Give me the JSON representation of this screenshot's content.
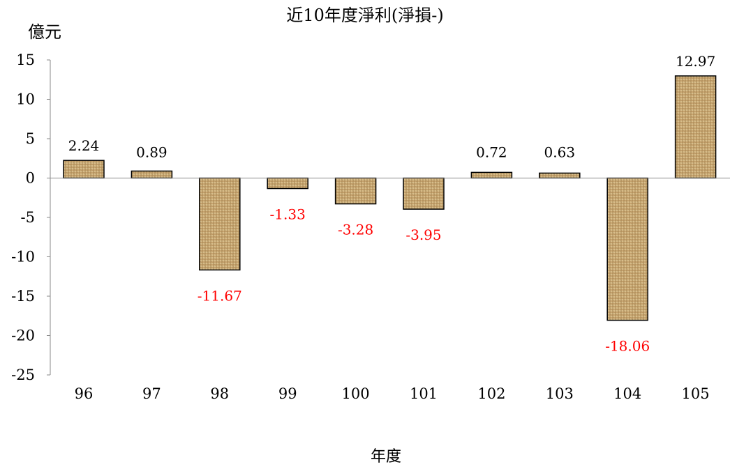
{
  "chart_data": {
    "type": "bar",
    "title": "近10年度淨利(淨損-)",
    "ylabel": "億元",
    "xlabel": "年度",
    "ylim": [
      -25,
      15
    ],
    "yticks": [
      15,
      10,
      5,
      0,
      -5,
      -10,
      -15,
      -20,
      -25
    ],
    "grid": false,
    "categories": [
      "96",
      "97",
      "98",
      "99",
      "100",
      "101",
      "102",
      "103",
      "104",
      "105"
    ],
    "values": [
      2.24,
      0.89,
      -11.67,
      -1.33,
      -3.28,
      -3.95,
      0.72,
      0.63,
      -18.06,
      12.97
    ],
    "data_labels": [
      "2.24",
      "0.89",
      "-11.67",
      "-1.33",
      "-3.28",
      "-3.95",
      "0.72",
      "0.63",
      "-18.06",
      "12.97"
    ],
    "colors": {
      "bar_fill": "#c7a46f",
      "bar_weave_light": "#e2cc9a",
      "bar_weave_dark": "#8a6a3a",
      "bar_stroke": "#000000",
      "positive_label": "#000000",
      "negative_label": "#ff0000"
    }
  }
}
